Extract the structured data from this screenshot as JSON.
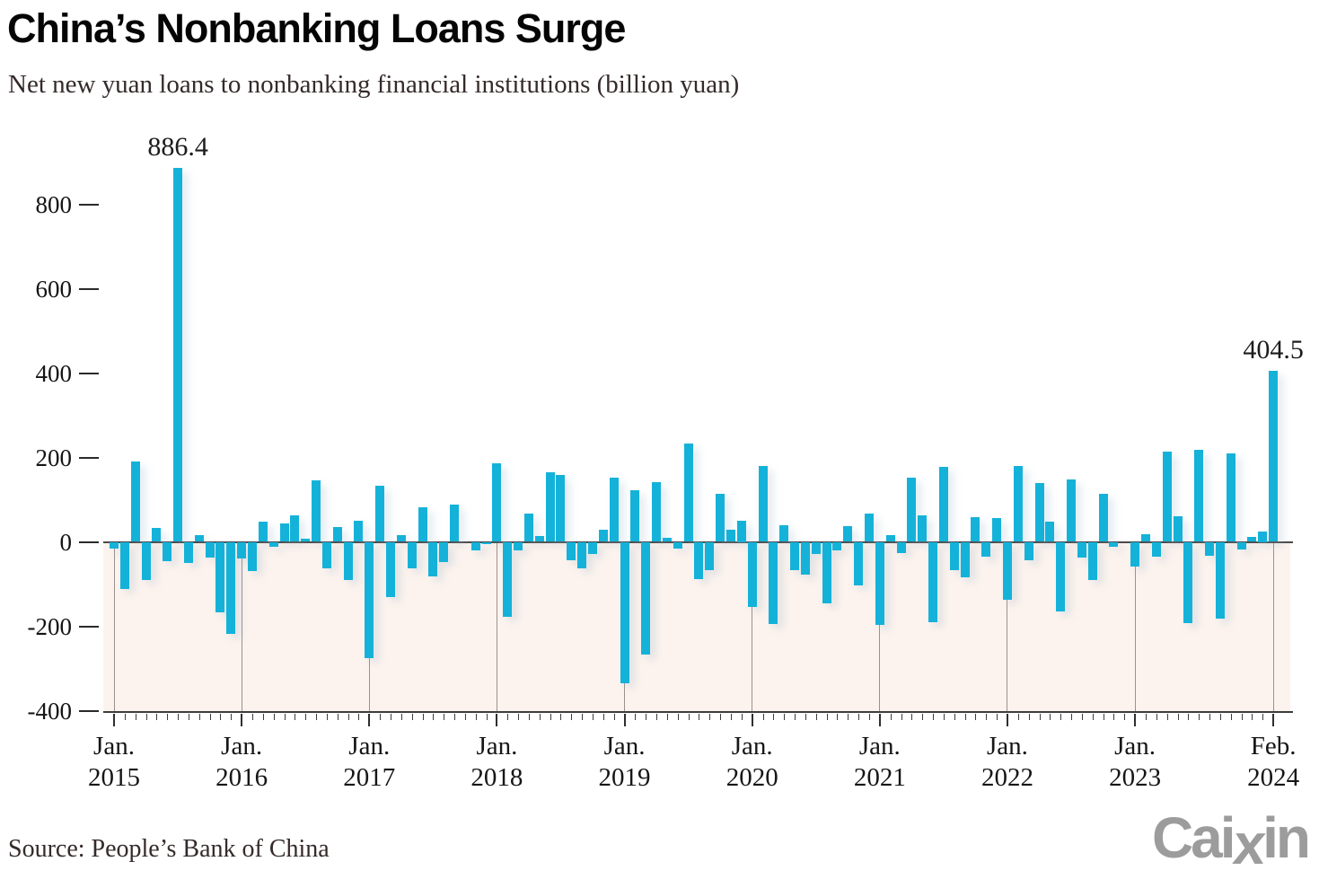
{
  "title": "China’s Nonbanking Loans Surge",
  "subtitle": "Net new yuan loans to nonbanking financial institutions (billion yuan)",
  "source": "Source: People’s Bank of China",
  "logo": {
    "prefix": "Cai",
    "x": "x",
    "suffix": "in"
  },
  "colors": {
    "bar": "#14b2d9",
    "negative_region": "#fcf3ee",
    "axis_line": "#3d3d3d",
    "gridline": "#9a9290",
    "text": "#141414",
    "logo": "#9c9c9c"
  },
  "chart_data": {
    "type": "bar",
    "title": "China’s Nonbanking Loans Surge",
    "subtitle": "Net new yuan loans to nonbanking financial institutions (billion yuan)",
    "unit": "billion yuan",
    "ylim": [
      -400,
      900
    ],
    "grid": "vertical-below-zero-only",
    "legend": "none",
    "y_ticks": [
      {
        "label": "800",
        "value": 800
      },
      {
        "label": "600",
        "value": 600
      },
      {
        "label": "400",
        "value": 400
      },
      {
        "label": "200",
        "value": 200
      },
      {
        "label": "0",
        "value": 0
      },
      {
        "label": "-200",
        "value": -200
      },
      {
        "label": "-400",
        "value": -400
      }
    ],
    "x_ticks": [
      {
        "line1": "Jan.",
        "line2": "2015",
        "index": 0
      },
      {
        "line1": "Jan.",
        "line2": "2016",
        "index": 12
      },
      {
        "line1": "Jan.",
        "line2": "2017",
        "index": 24
      },
      {
        "line1": "Jan.",
        "line2": "2018",
        "index": 36
      },
      {
        "line1": "Jan.",
        "line2": "2019",
        "index": 48
      },
      {
        "line1": "Jan.",
        "line2": "2020",
        "index": 60
      },
      {
        "line1": "Jan.",
        "line2": "2021",
        "index": 72
      },
      {
        "line1": "Jan.",
        "line2": "2022",
        "index": 84
      },
      {
        "line1": "Jan.",
        "line2": "2023",
        "index": 96
      },
      {
        "line1": "Feb.",
        "line2": "2024",
        "index": 109
      }
    ],
    "annotations": [
      {
        "text": "886.4",
        "index": 6
      },
      {
        "text": "404.5",
        "index": 109
      }
    ],
    "months": [
      "2015-01",
      "2015-02",
      "2015-03",
      "2015-04",
      "2015-05",
      "2015-06",
      "2015-07",
      "2015-08",
      "2015-09",
      "2015-10",
      "2015-11",
      "2015-12",
      "2016-01",
      "2016-02",
      "2016-03",
      "2016-04",
      "2016-05",
      "2016-06",
      "2016-07",
      "2016-08",
      "2016-09",
      "2016-10",
      "2016-11",
      "2016-12",
      "2017-01",
      "2017-02",
      "2017-03",
      "2017-04",
      "2017-05",
      "2017-06",
      "2017-07",
      "2017-08",
      "2017-09",
      "2017-10",
      "2017-11",
      "2017-12",
      "2018-01",
      "2018-02",
      "2018-03",
      "2018-04",
      "2018-05",
      "2018-06",
      "2018-07",
      "2018-08",
      "2018-09",
      "2018-10",
      "2018-11",
      "2018-12",
      "2019-01",
      "2019-02",
      "2019-03",
      "2019-04",
      "2019-05",
      "2019-06",
      "2019-07",
      "2019-08",
      "2019-09",
      "2019-10",
      "2019-11",
      "2019-12",
      "2020-01",
      "2020-02",
      "2020-03",
      "2020-04",
      "2020-05",
      "2020-06",
      "2020-07",
      "2020-08",
      "2020-09",
      "2020-10",
      "2020-11",
      "2020-12",
      "2021-01",
      "2021-02",
      "2021-03",
      "2021-04",
      "2021-05",
      "2021-06",
      "2021-07",
      "2021-08",
      "2021-09",
      "2021-10",
      "2021-11",
      "2021-12",
      "2022-01",
      "2022-02",
      "2022-03",
      "2022-04",
      "2022-05",
      "2022-06",
      "2022-07",
      "2022-08",
      "2022-09",
      "2022-10",
      "2022-11",
      "2022-12",
      "2023-01",
      "2023-02",
      "2023-03",
      "2023-04",
      "2023-05",
      "2023-06",
      "2023-07",
      "2023-08",
      "2023-09",
      "2023-10",
      "2023-11",
      "2023-12",
      "2024-01",
      "2024-02"
    ],
    "values": [
      -15,
      -111,
      190,
      -91,
      32,
      -46,
      886.4,
      -51,
      15,
      -37,
      -166,
      -218,
      -39,
      -69,
      47,
      -12,
      43,
      62,
      7,
      146,
      -62,
      35,
      -90,
      49,
      -275,
      133,
      -131,
      15,
      -62,
      81,
      -82,
      -48,
      89,
      0,
      -20,
      -6,
      186,
      -178,
      -20,
      68,
      13,
      164,
      158,
      -43,
      -62,
      -28,
      28,
      152,
      -335,
      123,
      -268,
      142,
      9,
      -16,
      232,
      -89,
      -66,
      113,
      28,
      50,
      -155,
      179,
      -194,
      40,
      -66,
      -77,
      -28,
      -146,
      -20,
      38,
      -104,
      67,
      -196,
      17,
      -27,
      153,
      62,
      -190,
      177,
      -66,
      -85,
      58,
      -36,
      56,
      -138,
      179,
      -43,
      139,
      47,
      -164,
      148,
      -38,
      -91,
      114,
      -11,
      0,
      -58,
      19,
      -35,
      214,
      60,
      -193,
      218,
      -33,
      -182,
      209,
      -18,
      12,
      25,
      404.5
    ]
  }
}
